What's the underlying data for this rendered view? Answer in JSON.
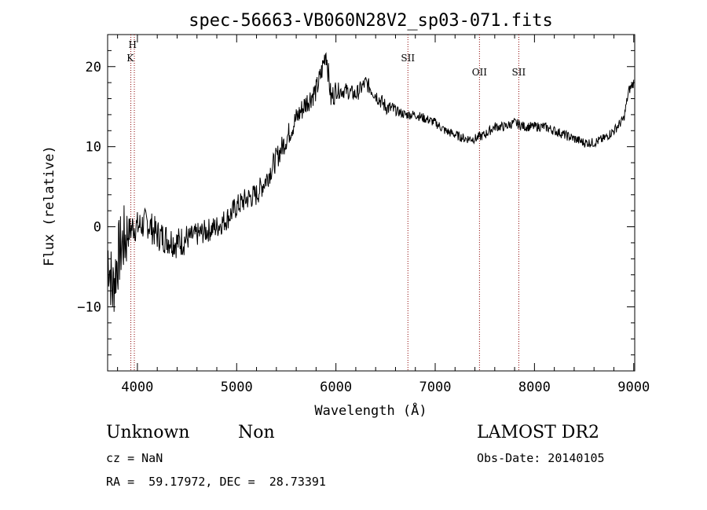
{
  "chart_data": {
    "type": "line",
    "title": "spec-56663-VB060N28V2_sp03-071.fits",
    "xlabel": "Wavelength (Å)",
    "ylabel": "Flux (relative)",
    "xlim": [
      3700,
      9010
    ],
    "ylim": [
      -18,
      24
    ],
    "xticks": [
      4000,
      5000,
      6000,
      7000,
      8000,
      9000
    ],
    "yticks": [
      -10,
      0,
      10,
      20
    ],
    "xtick_labels": [
      "4000",
      "5000",
      "6000",
      "7000",
      "8000",
      "9000"
    ],
    "ytick_labels": [
      "−10",
      "0",
      "10",
      "20"
    ],
    "grid": false,
    "line_color": "#000000",
    "marker_color": "#8b0000",
    "series": [
      {
        "x": [
          3700,
          3750,
          3800,
          3850,
          3900,
          3950,
          4000,
          4100,
          4200,
          4300,
          4400,
          4500,
          4600,
          4700,
          4800,
          4900,
          5000,
          5100,
          5200,
          5300,
          5400,
          5500,
          5600,
          5700,
          5800,
          5850,
          5900,
          5950,
          6000,
          6100,
          6200,
          6300,
          6400,
          6500,
          6600,
          6700,
          6800,
          6900,
          7000,
          7100,
          7200,
          7300,
          7400,
          7500,
          7600,
          7700,
          7800,
          7900,
          8000,
          8100,
          8200,
          8300,
          8400,
          8500,
          8600,
          8700,
          8800,
          8900,
          8950,
          9000
        ],
        "y": [
          -3,
          -8,
          -4,
          -2,
          -1,
          0,
          0,
          0.5,
          -1,
          -1.5,
          -2,
          -1.5,
          -1,
          -0.5,
          0,
          1,
          2.5,
          3.5,
          4,
          6,
          8.5,
          11,
          13.5,
          15.5,
          17,
          19,
          22,
          16,
          17,
          17,
          16.5,
          18,
          16.5,
          15,
          14.5,
          14,
          14,
          13.5,
          13,
          12,
          11.5,
          11,
          11,
          11.5,
          12.5,
          12.5,
          13,
          12.5,
          12.5,
          12.5,
          12,
          11.5,
          11,
          10.5,
          10.5,
          11,
          12,
          13.5,
          17,
          18
        ]
      }
    ],
    "lines": [
      {
        "label_top": "H",
        "label_bottom": "K",
        "x": [
          3934,
          3969
        ]
      },
      {
        "label": "SII",
        "x": [
          6725
        ]
      },
      {
        "label": "OII",
        "x": [
          7446
        ]
      },
      {
        "label": "SII",
        "x": [
          7842
        ]
      }
    ]
  },
  "footer": {
    "class": "Unknown",
    "subclass": "Non",
    "survey": "LAMOST DR2",
    "cz": "cz = NaN",
    "obs_date": "Obs-Date: 20140105",
    "coords": "RA =  59.17972, DEC =  28.73391"
  }
}
